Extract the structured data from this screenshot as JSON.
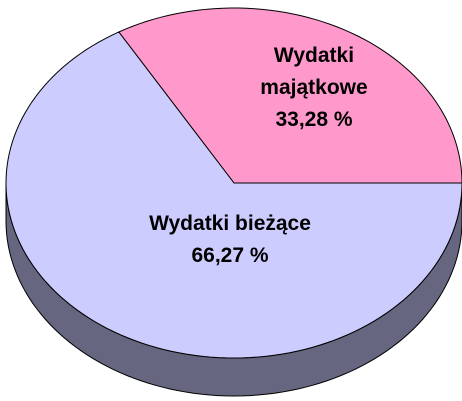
{
  "chart_data": {
    "type": "pie",
    "categories": [
      "Wydatki majątkowe",
      "Wydatki bieżące"
    ],
    "values": [
      33.28,
      66.27
    ],
    "value_labels": [
      "33,28 %",
      "66,27 %"
    ],
    "colors": [
      "#ff99cc",
      "#ccccff"
    ]
  }
}
